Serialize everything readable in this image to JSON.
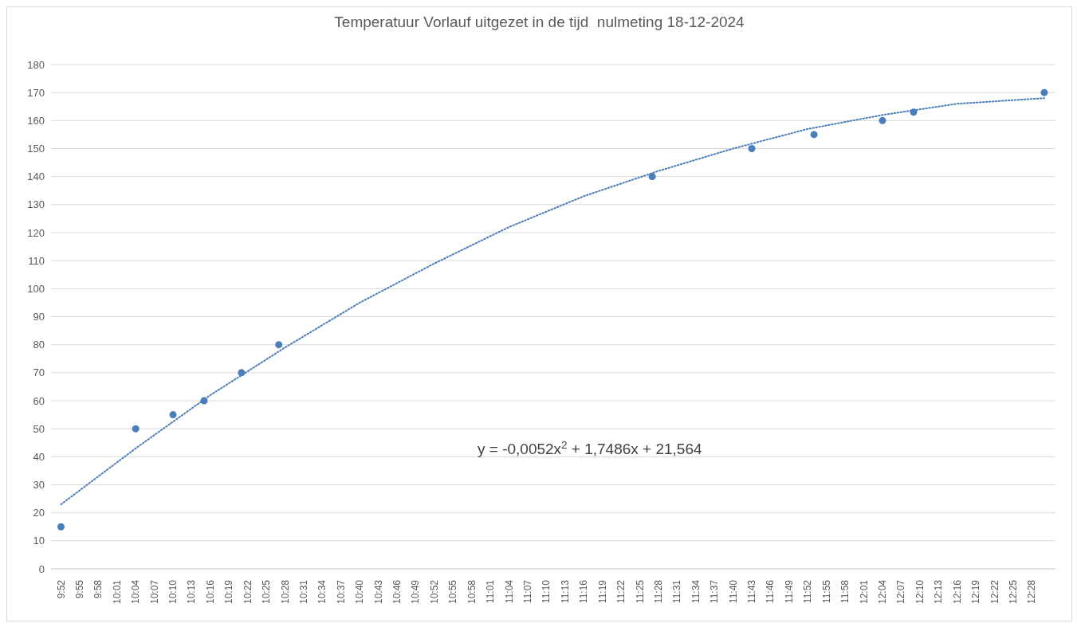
{
  "chart_data": {
    "type": "scatter",
    "title": "Temperatuur Vorlauf uitgezet in de tijd  nulmeting 18-12-2024",
    "annotations": [
      "y = -0,0052x$^{2}$ + 1,7486x + 21,564"
    ],
    "xlim": [
      9.84,
      12.53
    ],
    "ylim": [
      0,
      180
    ],
    "yticks": [
      0,
      10,
      20,
      30,
      40,
      50,
      60,
      70,
      80,
      90,
      100,
      110,
      120,
      130,
      140,
      150,
      160,
      170,
      180
    ],
    "xticks": [
      {
        "value": 9.8667,
        "label": "9:52"
      },
      {
        "value": 9.9167,
        "label": "9:55"
      },
      {
        "value": 9.9667,
        "label": "9:58"
      },
      {
        "value": 10.0167,
        "label": "10:01"
      },
      {
        "value": 10.0667,
        "label": "10:04"
      },
      {
        "value": 10.1167,
        "label": "10:07"
      },
      {
        "value": 10.1667,
        "label": "10:10"
      },
      {
        "value": 10.2167,
        "label": "10:13"
      },
      {
        "value": 10.2667,
        "label": "10:16"
      },
      {
        "value": 10.3167,
        "label": "10:19"
      },
      {
        "value": 10.3667,
        "label": "10:22"
      },
      {
        "value": 10.4167,
        "label": "10:25"
      },
      {
        "value": 10.4667,
        "label": "10:28"
      },
      {
        "value": 10.5167,
        "label": "10:31"
      },
      {
        "value": 10.5667,
        "label": "10:34"
      },
      {
        "value": 10.6167,
        "label": "10:37"
      },
      {
        "value": 10.6667,
        "label": "10:40"
      },
      {
        "value": 10.7167,
        "label": "10:43"
      },
      {
        "value": 10.7667,
        "label": "10:46"
      },
      {
        "value": 10.8167,
        "label": "10:49"
      },
      {
        "value": 10.8667,
        "label": "10:52"
      },
      {
        "value": 10.9167,
        "label": "10:55"
      },
      {
        "value": 10.9667,
        "label": "10:58"
      },
      {
        "value": 11.0167,
        "label": "11:01"
      },
      {
        "value": 11.0667,
        "label": "11:04"
      },
      {
        "value": 11.1167,
        "label": "11:07"
      },
      {
        "value": 11.1667,
        "label": "11:10"
      },
      {
        "value": 11.2167,
        "label": "11:13"
      },
      {
        "value": 11.2667,
        "label": "11:16"
      },
      {
        "value": 11.3167,
        "label": "11:19"
      },
      {
        "value": 11.3667,
        "label": "11:22"
      },
      {
        "value": 11.4167,
        "label": "11:25"
      },
      {
        "value": 11.4667,
        "label": "11:28"
      },
      {
        "value": 11.5167,
        "label": "11:31"
      },
      {
        "value": 11.5667,
        "label": "11:34"
      },
      {
        "value": 11.6167,
        "label": "11:37"
      },
      {
        "value": 11.6667,
        "label": "11:40"
      },
      {
        "value": 11.7167,
        "label": "11:43"
      },
      {
        "value": 11.7667,
        "label": "11:46"
      },
      {
        "value": 11.8167,
        "label": "11:49"
      },
      {
        "value": 11.8667,
        "label": "11:52"
      },
      {
        "value": 11.9167,
        "label": "11:55"
      },
      {
        "value": 11.9667,
        "label": "11:58"
      },
      {
        "value": 12.0167,
        "label": "12:01"
      },
      {
        "value": 12.0667,
        "label": "12:04"
      },
      {
        "value": 12.1167,
        "label": "12:07"
      },
      {
        "value": 12.1667,
        "label": "12:10"
      },
      {
        "value": 12.2167,
        "label": "12:13"
      },
      {
        "value": 12.2667,
        "label": "12:16"
      },
      {
        "value": 12.3167,
        "label": "12:19"
      },
      {
        "value": 12.3667,
        "label": "12:22"
      },
      {
        "value": 12.4167,
        "label": "12:25"
      },
      {
        "value": 12.4667,
        "label": "12:28"
      }
    ],
    "grid": "y",
    "marker": "circle",
    "series": [
      {
        "color": "#4a7ebb",
        "x": [
          9.8667,
          10.0667,
          10.1667,
          10.25,
          10.35,
          10.45,
          11.45,
          11.7167,
          11.8833,
          12.0667,
          12.15,
          12.5
        ],
        "values": [
          15,
          50,
          55,
          60,
          70,
          80,
          140,
          150,
          155,
          160,
          163,
          170
        ]
      },
      {
        "type": "line",
        "color": "#4a7ebb",
        "line_style": "dotted",
        "marker": "none",
        "x": [
          9.8667,
          10.0667,
          10.2667,
          10.4667,
          10.6667,
          10.8667,
          11.0667,
          11.2667,
          11.4667,
          11.6667,
          11.8667,
          12.0667,
          12.2667,
          12.5
        ],
        "values": [
          23,
          43,
          62,
          79,
          95,
          109,
          122,
          133,
          142,
          150,
          157,
          162,
          166,
          168
        ]
      }
    ]
  }
}
